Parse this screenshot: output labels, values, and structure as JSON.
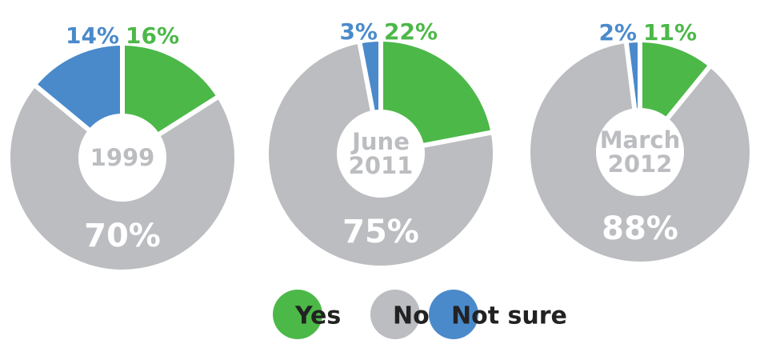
{
  "chart_data": [
    {
      "type": "pie",
      "title": "1999",
      "categories": [
        "Yes",
        "No",
        "Not sure"
      ],
      "values": [
        16,
        70,
        14
      ],
      "value_labels": [
        "16%",
        "70%",
        "14%"
      ],
      "colors": [
        "#4cb848",
        "#bcbdc0",
        "#4a8acb"
      ]
    },
    {
      "type": "pie",
      "title": "June 2011",
      "categories": [
        "Yes",
        "No",
        "Not sure"
      ],
      "values": [
        22,
        75,
        3
      ],
      "value_labels": [
        "22%",
        "75%",
        "3%"
      ],
      "colors": [
        "#4cb848",
        "#bcbdc0",
        "#4a8acb"
      ]
    },
    {
      "type": "pie",
      "title": "March 2012",
      "categories": [
        "Yes",
        "No",
        "Not sure"
      ],
      "values": [
        11,
        88,
        2
      ],
      "value_labels": [
        "11%",
        "88%",
        "2%"
      ],
      "colors": [
        "#4cb848",
        "#bcbdc0",
        "#4a8acb"
      ]
    }
  ]
}
